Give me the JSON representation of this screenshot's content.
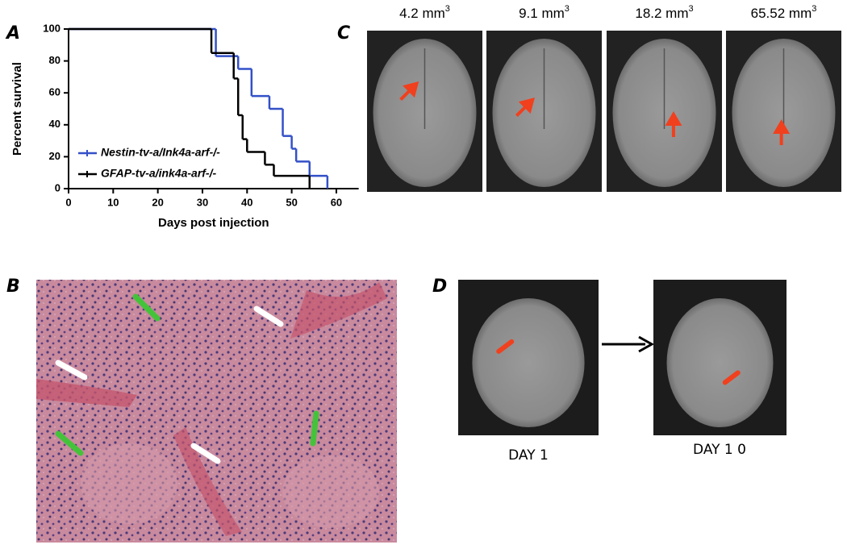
{
  "chart_data": {
    "type": "step",
    "xlabel": "Days post injection",
    "ylabel": "Percent survival",
    "xlim": [
      0,
      65
    ],
    "xticks": [
      0,
      10,
      20,
      30,
      40,
      50,
      60
    ],
    "ylim": [
      0,
      100
    ],
    "yticks": [
      0,
      20,
      40,
      60,
      80,
      100
    ],
    "series": [
      {
        "name": "Nestin-tv-a/Ink4a-arf-/-",
        "color": "#3350c8",
        "x": [
          0,
          33,
          38,
          41,
          45,
          48,
          50,
          51,
          54,
          58
        ],
        "values": [
          100,
          83,
          75,
          58,
          50,
          33,
          25,
          17,
          8,
          0
        ]
      },
      {
        "name": "GFAP-tv-a/ink4a-arf-/-",
        "color": "#000000",
        "x": [
          0,
          32,
          37,
          38,
          39,
          40,
          44,
          46,
          54
        ],
        "values": [
          100,
          85,
          69,
          46,
          31,
          23,
          15,
          8,
          0
        ]
      }
    ]
  },
  "panels": {
    "a": "A",
    "b": "B",
    "c": "C",
    "d": "D"
  },
  "mri_labels": [
    {
      "text": "4.2 mm",
      "sup": "3"
    },
    {
      "text": "9.1 mm",
      "sup": "3"
    },
    {
      "text": "18.2 mm",
      "sup": "3"
    },
    {
      "text": "65.52 mm",
      "sup": "3"
    }
  ],
  "day_labels": [
    "DAY 1",
    "DAY 1 0"
  ]
}
